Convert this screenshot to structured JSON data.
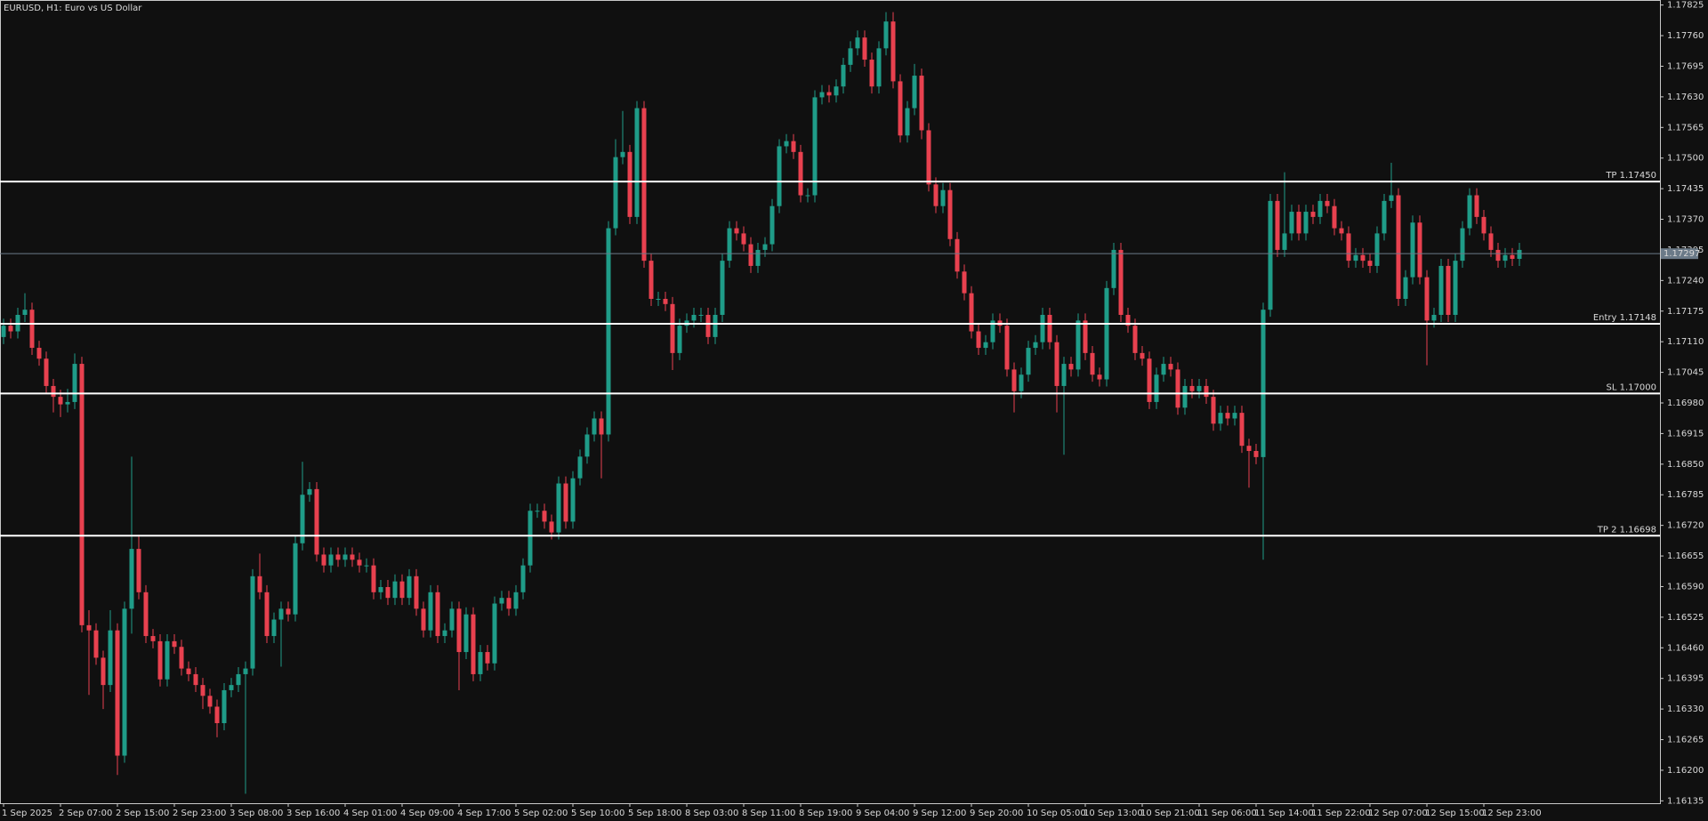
{
  "chart_data": {
    "type": "candlestick",
    "title": "EURUSD, H1:  Euro vs US Dollar",
    "up_color": "#1f9c88",
    "down_color": "#e8414f",
    "ylim": [
      1.1613,
      1.1783
    ],
    "yticks": [
      {
        "value": 1.17825,
        "label": "1.17825"
      },
      {
        "value": 1.1776,
        "label": "1.17760"
      },
      {
        "value": 1.17695,
        "label": "1.17695"
      },
      {
        "value": 1.1763,
        "label": "1.17630"
      },
      {
        "value": 1.17565,
        "label": "1.17565"
      },
      {
        "value": 1.175,
        "label": "1.17500"
      },
      {
        "value": 1.17435,
        "label": "1.17435"
      },
      {
        "value": 1.1737,
        "label": "1.17370"
      },
      {
        "value": 1.17305,
        "label": "1.17305"
      },
      {
        "value": 1.1724,
        "label": "1.17240"
      },
      {
        "value": 1.17175,
        "label": "1.17175"
      },
      {
        "value": 1.1711,
        "label": "1.17110"
      },
      {
        "value": 1.17045,
        "label": "1.17045"
      },
      {
        "value": 1.1698,
        "label": "1.16980"
      },
      {
        "value": 1.16915,
        "label": "1.16915"
      },
      {
        "value": 1.1685,
        "label": "1.16850"
      },
      {
        "value": 1.16785,
        "label": "1.16785"
      },
      {
        "value": 1.1672,
        "label": "1.16720"
      },
      {
        "value": 1.16655,
        "label": "1.16655"
      },
      {
        "value": 1.1659,
        "label": "1.16590"
      },
      {
        "value": 1.16525,
        "label": "1.16525"
      },
      {
        "value": 1.1646,
        "label": "1.16460"
      },
      {
        "value": 1.16395,
        "label": "1.16395"
      },
      {
        "value": 1.1633,
        "label": "1.16330"
      },
      {
        "value": 1.16265,
        "label": "1.16265"
      },
      {
        "value": 1.162,
        "label": "1.16200"
      },
      {
        "value": 1.16135,
        "label": "1.16135"
      }
    ],
    "levels": [
      {
        "value": 1.1745,
        "label": "TP 1.17450"
      },
      {
        "value": 1.17148,
        "label": "Entry 1.17148"
      },
      {
        "value": 1.17,
        "label": "SL 1.17000"
      },
      {
        "value": 1.16698,
        "label": "TP 2 1.16698"
      }
    ],
    "bid": {
      "value": 1.17297,
      "label": "1.17297"
    },
    "categories": [
      "1 Sep 2025",
      null,
      null,
      null,
      null,
      null,
      null,
      null,
      "2 Sep 07:00",
      null,
      null,
      null,
      null,
      null,
      null,
      null,
      "2 Sep 15:00",
      null,
      null,
      null,
      null,
      null,
      null,
      null,
      "2 Sep 23:00",
      null,
      null,
      null,
      null,
      null,
      null,
      null,
      "3 Sep 08:00",
      null,
      null,
      null,
      null,
      null,
      null,
      null,
      "3 Sep 16:00",
      null,
      null,
      null,
      null,
      null,
      null,
      null,
      "4 Sep 01:00",
      null,
      null,
      null,
      null,
      null,
      null,
      null,
      "4 Sep 09:00",
      null,
      null,
      null,
      null,
      null,
      null,
      null,
      "4 Sep 17:00",
      null,
      null,
      null,
      null,
      null,
      null,
      null,
      "5 Sep 02:00",
      null,
      null,
      null,
      null,
      null,
      null,
      null,
      "5 Sep 10:00",
      null,
      null,
      null,
      null,
      null,
      null,
      null,
      "5 Sep 18:00",
      null,
      null,
      null,
      null,
      null,
      null,
      null,
      "8 Sep 03:00",
      null,
      null,
      null,
      null,
      null,
      null,
      null,
      "8 Sep 11:00",
      null,
      null,
      null,
      null,
      null,
      null,
      null,
      "8 Sep 19:00",
      null,
      null,
      null,
      null,
      null,
      null,
      null,
      "9 Sep 04:00",
      null,
      null,
      null,
      null,
      null,
      null,
      null,
      "9 Sep 12:00",
      null,
      null,
      null,
      null,
      null,
      null,
      null,
      "9 Sep 20:00",
      null,
      null,
      null,
      null,
      null,
      null,
      null,
      "10 Sep 05:00",
      null,
      null,
      null,
      null,
      null,
      null,
      null,
      "10 Sep 13:00",
      null,
      null,
      null,
      null,
      null,
      null,
      null,
      "10 Sep 21:00",
      null,
      null,
      null,
      null,
      null,
      null,
      null,
      "11 Sep 06:00",
      null,
      null,
      null,
      null,
      null,
      null,
      null,
      "11 Sep 14:00",
      null,
      null,
      null,
      null,
      null,
      null,
      null,
      "11 Sep 22:00",
      null,
      null,
      null,
      null,
      null,
      null,
      null,
      "12 Sep 07:00",
      null,
      null,
      null,
      null,
      null,
      null,
      null,
      "12 Sep 15:00",
      null,
      null,
      null,
      null,
      null,
      null,
      null,
      "12 Sep 23:00",
      null,
      null,
      null,
      null,
      null
    ],
    "open": [
      1.1712,
      1.17144,
      1.17132,
      1.17167,
      1.17178,
      1.17097,
      1.17074,
      1.17016,
      1.16993,
      1.16977,
      1.16982,
      1.17063,
      1.16508,
      1.16497,
      1.16439,
      1.16381,
      1.16497,
      1.16231,
      1.16543,
      1.1667,
      1.16578,
      1.16485,
      1.16474,
      1.16393,
      1.16474,
      1.16462,
      1.16416,
      1.16404,
      1.16381,
      1.16358,
      1.16335,
      1.163,
      1.1637,
      1.16381,
      1.16404,
      1.16416,
      1.16612,
      1.16578,
      1.16485,
      1.1652,
      1.16543,
      1.16531,
      1.16682,
      1.16785,
      1.16797,
      1.16658,
      1.16635,
      1.16658,
      1.16647,
      1.16658,
      1.16647,
      1.16635,
      1.16635,
      1.16578,
      1.16589,
      1.16566,
      1.16601,
      1.16566,
      1.16612,
      1.16543,
      1.16497,
      1.16578,
      1.16485,
      1.16497,
      1.16543,
      1.16451,
      1.16531,
      1.16404,
      1.16451,
      1.16427,
      1.16554,
      1.16566,
      1.16543,
      1.16578,
      1.16635,
      1.16751,
      1.16751,
      1.16728,
      1.16705,
      1.16809,
      1.16728,
      1.1682,
      1.16866,
      1.16913,
      1.16947,
      1.16913,
      1.17351,
      1.17502,
      1.17513,
      1.17375,
      1.17606,
      1.17282,
      1.17201,
      1.17201,
      1.1719,
      1.17086,
      1.17144,
      1.17155,
      1.17167,
      1.17167,
      1.1712,
      1.17167,
      1.17282,
      1.17351,
      1.1734,
      1.17317,
      1.17271,
      1.17305,
      1.17317,
      1.17398,
      1.17525,
      1.17536,
      1.17513,
      1.17421,
      1.17421,
      1.17629,
      1.1764,
      1.17633,
      1.17652,
      1.17698,
      1.17733,
      1.17756,
      1.17709,
      1.17652,
      1.17733,
      1.1779,
      1.17663,
      1.17548,
      1.17606,
      1.17675,
      1.17559,
      1.17444,
      1.17398,
      1.17432,
      1.17328,
      1.17259,
      1.17213,
      1.17132,
      1.17097,
      1.17109,
      1.17155,
      1.17144,
      1.17051,
      1.17005,
      1.1704,
      1.17097,
      1.17109,
      1.17167,
      1.17109,
      1.17016,
      1.17063,
      1.17051,
      1.17155,
      1.17086,
      1.1704,
      1.1703,
      1.17224,
      1.17305,
      1.17167,
      1.17144,
      1.17086,
      1.17074,
      1.16982,
      1.1704,
      1.17063,
      1.17051,
      1.1697,
      1.17016,
      1.17005,
      1.17016,
      1.16993,
      1.16936,
      1.16959,
      1.16947,
      1.16959,
      1.16889,
      1.16878,
      1.16865,
      1.17178,
      1.17409,
      1.17305,
      1.1734,
      1.17386,
      1.1734,
      1.17386,
      1.17375,
      1.17409,
      1.17398,
      1.17351,
      1.1734,
      1.17282,
      1.17294,
      1.17282,
      1.17271,
      1.1734,
      1.17409,
      1.17421,
      1.17201,
      1.17247,
      1.17363,
      1.17247,
      1.17155,
      1.17167,
      1.17271,
      1.17167,
      1.17282,
      1.17351,
      1.17421,
      1.17375,
      1.1734,
      1.17305,
      1.17282,
      1.17294,
      1.17286
    ],
    "high": [
      1.17159,
      1.17159,
      1.17182,
      1.17213,
      1.17193,
      1.17112,
      1.17089,
      1.17031,
      1.17008,
      1.1701,
      1.17085,
      1.17078,
      1.1654,
      1.16512,
      1.16454,
      1.1654,
      1.16512,
      1.16558,
      1.16866,
      1.167,
      1.16593,
      1.165,
      1.16489,
      1.16489,
      1.16489,
      1.16477,
      1.16431,
      1.16419,
      1.16396,
      1.16373,
      1.1635,
      1.16385,
      1.16396,
      1.16419,
      1.16431,
      1.16627,
      1.1666,
      1.16593,
      1.16535,
      1.16558,
      1.16558,
      1.16697,
      1.16855,
      1.16812,
      1.16812,
      1.16673,
      1.16673,
      1.16673,
      1.16673,
      1.16673,
      1.16662,
      1.1665,
      1.1665,
      1.16604,
      1.16604,
      1.16616,
      1.16616,
      1.16627,
      1.16627,
      1.16558,
      1.16593,
      1.16593,
      1.16512,
      1.16558,
      1.16558,
      1.16546,
      1.16546,
      1.16466,
      1.16466,
      1.16569,
      1.16581,
      1.16581,
      1.16593,
      1.1665,
      1.16766,
      1.16766,
      1.16766,
      1.16743,
      1.16824,
      1.16824,
      1.16835,
      1.16881,
      1.16928,
      1.16962,
      1.16962,
      1.17366,
      1.1754,
      1.176,
      1.17528,
      1.17621,
      1.17621,
      1.17297,
      1.17216,
      1.17216,
      1.17205,
      1.17159,
      1.1717,
      1.17182,
      1.17182,
      1.17182,
      1.17182,
      1.17297,
      1.17366,
      1.17366,
      1.17355,
      1.17332,
      1.1732,
      1.17332,
      1.17413,
      1.1754,
      1.17551,
      1.17551,
      1.17528,
      1.17436,
      1.17644,
      1.17655,
      1.17655,
      1.17667,
      1.17713,
      1.17748,
      1.17771,
      1.17771,
      1.17724,
      1.17748,
      1.1781,
      1.1781,
      1.17678,
      1.17621,
      1.177,
      1.1769,
      1.17574,
      1.17459,
      1.17447,
      1.17447,
      1.17343,
      1.17274,
      1.17228,
      1.17147,
      1.17124,
      1.1717,
      1.1717,
      1.17159,
      1.17066,
      1.17055,
      1.17112,
      1.17124,
      1.17182,
      1.17182,
      1.17124,
      1.17078,
      1.17078,
      1.1717,
      1.1717,
      1.17101,
      1.17055,
      1.17239,
      1.1732,
      1.1732,
      1.17182,
      1.17159,
      1.17101,
      1.17089,
      1.17055,
      1.17078,
      1.17078,
      1.17066,
      1.17031,
      1.17031,
      1.17031,
      1.17031,
      1.17008,
      1.16974,
      1.16974,
      1.16974,
      1.16974,
      1.16904,
      1.16893,
      1.17193,
      1.17424,
      1.17424,
      1.1747,
      1.17401,
      1.17401,
      1.17401,
      1.17401,
      1.17424,
      1.17424,
      1.17413,
      1.17366,
      1.17355,
      1.17309,
      1.17309,
      1.17297,
      1.17355,
      1.17424,
      1.1749,
      1.17436,
      1.17262,
      1.17378,
      1.17378,
      1.17262,
      1.17182,
      1.17286,
      1.17286,
      1.17297,
      1.17366,
      1.17436,
      1.17436,
      1.1739,
      1.17355,
      1.1732,
      1.17309,
      1.17309,
      1.1732
    ],
    "low": [
      1.17105,
      1.17117,
      1.17117,
      1.17152,
      1.17082,
      1.17059,
      1.17001,
      1.1696,
      1.1695,
      1.1696,
      1.16967,
      1.16493,
      1.1636,
      1.16424,
      1.1633,
      1.16366,
      1.1619,
      1.16216,
      1.1649,
      1.16563,
      1.1647,
      1.16459,
      1.16378,
      1.16378,
      1.16447,
      1.16401,
      1.16389,
      1.16366,
      1.1633,
      1.1632,
      1.1627,
      1.16285,
      1.16355,
      1.16366,
      1.1615,
      1.16401,
      1.16563,
      1.1647,
      1.1647,
      1.1642,
      1.16516,
      1.16516,
      1.16667,
      1.1677,
      1.16643,
      1.1662,
      1.1662,
      1.16632,
      1.16632,
      1.16632,
      1.1662,
      1.1662,
      1.16563,
      1.16563,
      1.16551,
      1.16551,
      1.16551,
      1.16551,
      1.16528,
      1.16482,
      1.16482,
      1.1647,
      1.1647,
      1.16482,
      1.1637,
      1.16436,
      1.16389,
      1.16389,
      1.16412,
      1.16412,
      1.16539,
      1.16528,
      1.16528,
      1.16563,
      1.1662,
      1.16736,
      1.16713,
      1.1669,
      1.1669,
      1.16713,
      1.16713,
      1.16805,
      1.16851,
      1.16898,
      1.1682,
      1.16898,
      1.17336,
      1.17487,
      1.1736,
      1.1736,
      1.17267,
      1.17186,
      1.17186,
      1.17175,
      1.1705,
      1.17071,
      1.17129,
      1.1714,
      1.17152,
      1.17105,
      1.17105,
      1.17152,
      1.17267,
      1.17325,
      1.17302,
      1.17256,
      1.17256,
      1.1729,
      1.17302,
      1.17383,
      1.1751,
      1.17498,
      1.17406,
      1.17406,
      1.17406,
      1.17614,
      1.17618,
      1.17618,
      1.17637,
      1.17683,
      1.17718,
      1.17694,
      1.17637,
      1.17637,
      1.17718,
      1.17648,
      1.17533,
      1.17533,
      1.17591,
      1.1754,
      1.17429,
      1.17383,
      1.17383,
      1.17313,
      1.17244,
      1.17198,
      1.17117,
      1.17082,
      1.17082,
      1.17094,
      1.17129,
      1.17036,
      1.1696,
      1.1699,
      1.17025,
      1.17082,
      1.17094,
      1.17094,
      1.1696,
      1.1687,
      1.17036,
      1.17036,
      1.17071,
      1.17025,
      1.17015,
      1.17015,
      1.17209,
      1.17152,
      1.17129,
      1.17071,
      1.17059,
      1.16967,
      1.16967,
      1.17025,
      1.17036,
      1.16955,
      1.16955,
      1.1699,
      1.1699,
      1.16978,
      1.16921,
      1.16921,
      1.16932,
      1.16932,
      1.16874,
      1.168,
      1.1685,
      1.16647,
      1.17163,
      1.1729,
      1.1729,
      1.17325,
      1.17325,
      1.17325,
      1.1736,
      1.1736,
      1.17383,
      1.17336,
      1.17325,
      1.17267,
      1.17267,
      1.17267,
      1.17256,
      1.17256,
      1.17325,
      1.17394,
      1.17186,
      1.17186,
      1.17232,
      1.17232,
      1.1706,
      1.1714,
      1.17152,
      1.17152,
      1.17152,
      1.17267,
      1.17336,
      1.1736,
      1.17325,
      1.1729,
      1.17267,
      1.17267,
      1.17271,
      1.17271
    ],
    "close": [
      1.17144,
      1.17132,
      1.17167,
      1.17178,
      1.17097,
      1.17074,
      1.17016,
      1.16993,
      1.16977,
      1.16982,
      1.17063,
      1.16508,
      1.16497,
      1.16439,
      1.16381,
      1.16497,
      1.16231,
      1.16543,
      1.1667,
      1.16578,
      1.16485,
      1.16474,
      1.16393,
      1.16474,
      1.16462,
      1.16416,
      1.16404,
      1.16381,
      1.16358,
      1.16335,
      1.163,
      1.1637,
      1.16381,
      1.16404,
      1.16416,
      1.16612,
      1.16578,
      1.16485,
      1.1652,
      1.16543,
      1.16531,
      1.16682,
      1.16785,
      1.16797,
      1.16658,
      1.16635,
      1.16658,
      1.16647,
      1.16658,
      1.16647,
      1.16635,
      1.16635,
      1.16578,
      1.16589,
      1.16566,
      1.16601,
      1.16566,
      1.16612,
      1.16543,
      1.16497,
      1.16578,
      1.16485,
      1.16497,
      1.16543,
      1.16451,
      1.16531,
      1.16404,
      1.16451,
      1.16427,
      1.16554,
      1.16566,
      1.16543,
      1.16578,
      1.16635,
      1.16751,
      1.16751,
      1.16728,
      1.16705,
      1.16809,
      1.16728,
      1.1682,
      1.16866,
      1.16913,
      1.16947,
      1.16913,
      1.17351,
      1.17502,
      1.17513,
      1.17375,
      1.17606,
      1.17282,
      1.17201,
      1.17201,
      1.1719,
      1.17086,
      1.17144,
      1.17155,
      1.17167,
      1.17167,
      1.1712,
      1.17167,
      1.17282,
      1.17351,
      1.1734,
      1.17317,
      1.17271,
      1.17305,
      1.17317,
      1.17398,
      1.17525,
      1.17536,
      1.17513,
      1.17421,
      1.17421,
      1.17629,
      1.1764,
      1.17633,
      1.17652,
      1.17698,
      1.17733,
      1.17756,
      1.17709,
      1.17652,
      1.17733,
      1.1779,
      1.17663,
      1.17548,
      1.17606,
      1.17675,
      1.17559,
      1.17444,
      1.17398,
      1.17432,
      1.17328,
      1.17259,
      1.17213,
      1.17132,
      1.17097,
      1.17109,
      1.17155,
      1.17144,
      1.17051,
      1.17005,
      1.1704,
      1.17097,
      1.17109,
      1.17167,
      1.17109,
      1.17016,
      1.17063,
      1.17051,
      1.17155,
      1.17086,
      1.1704,
      1.1703,
      1.17224,
      1.17305,
      1.17167,
      1.17144,
      1.17086,
      1.17074,
      1.16982,
      1.1704,
      1.17063,
      1.17051,
      1.1697,
      1.17016,
      1.17005,
      1.17016,
      1.16993,
      1.16936,
      1.16959,
      1.16947,
      1.16959,
      1.16889,
      1.16878,
      1.16865,
      1.17178,
      1.17409,
      1.17305,
      1.1734,
      1.17386,
      1.1734,
      1.17386,
      1.17375,
      1.17409,
      1.17398,
      1.17351,
      1.1734,
      1.17282,
      1.17294,
      1.17282,
      1.17271,
      1.1734,
      1.17409,
      1.17421,
      1.17201,
      1.17247,
      1.17363,
      1.17247,
      1.17155,
      1.17167,
      1.17271,
      1.17167,
      1.17282,
      1.17351,
      1.17421,
      1.17375,
      1.1734,
      1.17305,
      1.17282,
      1.17294,
      1.17286,
      1.17305
    ]
  }
}
